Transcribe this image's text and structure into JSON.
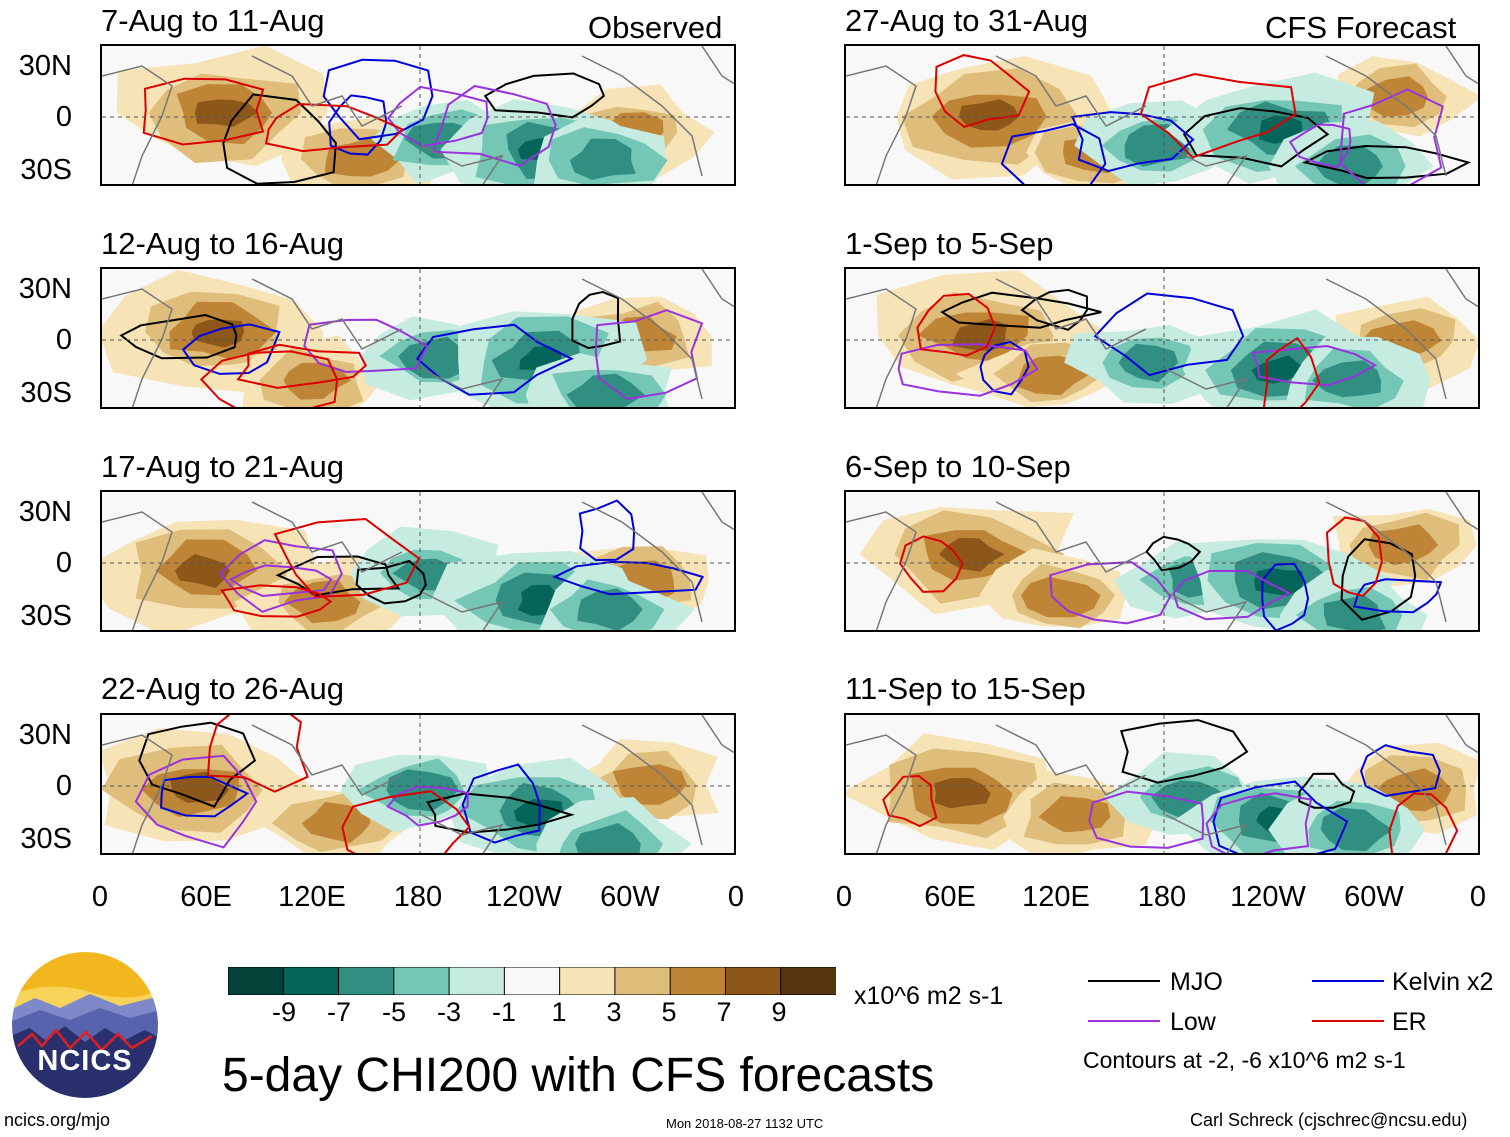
{
  "panels": [
    {
      "title": "7-Aug to 11-Aug",
      "tag": "Observed",
      "seed": 1
    },
    {
      "title": "12-Aug to 16-Aug",
      "tag": "",
      "seed": 2
    },
    {
      "title": "17-Aug to 21-Aug",
      "tag": "",
      "seed": 3
    },
    {
      "title": "22-Aug to 26-Aug",
      "tag": "",
      "seed": 4
    },
    {
      "title": "27-Aug to 31-Aug",
      "tag": "CFS Forecast",
      "seed": 5
    },
    {
      "title": "1-Sep to 5-Sep",
      "tag": "",
      "seed": 6
    },
    {
      "title": "6-Sep to 10-Sep",
      "tag": "",
      "seed": 7
    },
    {
      "title": "11-Sep to 15-Sep",
      "tag": "",
      "seed": 8
    }
  ],
  "lat_labels": [
    "30N",
    "0",
    "30S"
  ],
  "lon_labels": [
    "0",
    "60E",
    "120E",
    "180",
    "120W",
    "60W",
    "0"
  ],
  "chart_data": {
    "type": "heatmap",
    "title": "5-day CHI200 with CFS forecasts",
    "units": "x10^6 m2 s-1",
    "colorbar": {
      "tick_labels": [
        "-9",
        "-7",
        "-5",
        "-3",
        "-1",
        "1",
        "3",
        "5",
        "7",
        "9"
      ],
      "colors": [
        "#03433a",
        "#05655a",
        "#318f82",
        "#74c6b5",
        "#c6ebe1",
        "#f8f8f8",
        "#f6e4b7",
        "#dfbd7b",
        "#bf8536",
        "#8c5719",
        "#583510"
      ]
    },
    "legend": [
      {
        "name": "MJO",
        "color": "#000000"
      },
      {
        "name": "Kelvin x2",
        "color": "#0000dd"
      },
      {
        "name": "Low",
        "color": "#9933dd"
      },
      {
        "name": "ER",
        "color": "#dd0000"
      }
    ],
    "contour_note": "Contours at -2, -6 x10^6 m2 s-1",
    "x_axis": {
      "range": [
        "0",
        "0"
      ],
      "ticks": [
        "0",
        "60E",
        "120E",
        "180",
        "120W",
        "60W",
        "0"
      ]
    },
    "y_axis": {
      "range": [
        "30S",
        "30N"
      ],
      "ticks": [
        "30N",
        "0",
        "30S"
      ]
    }
  },
  "footer": {
    "left": "ncics.org/mjo",
    "center": "Mon 2018-08-27 1132 UTC",
    "right": "Carl Schreck (cjschrec@ncsu.edu)",
    "logo_text": "NCICS"
  }
}
